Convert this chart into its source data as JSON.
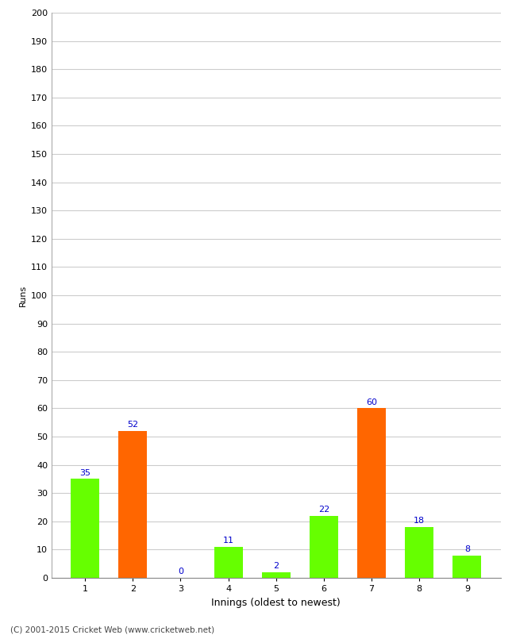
{
  "title": "",
  "xlabel": "Innings (oldest to newest)",
  "ylabel": "Runs",
  "categories": [
    "1",
    "2",
    "3",
    "4",
    "5",
    "6",
    "7",
    "8",
    "9"
  ],
  "values": [
    35,
    52,
    0,
    11,
    2,
    22,
    60,
    18,
    8
  ],
  "bar_colors": [
    "#66ff00",
    "#ff6600",
    "#66ff00",
    "#66ff00",
    "#66ff00",
    "#66ff00",
    "#ff6600",
    "#66ff00",
    "#66ff00"
  ],
  "ylim": [
    0,
    200
  ],
  "yticks": [
    0,
    10,
    20,
    30,
    40,
    50,
    60,
    70,
    80,
    90,
    100,
    110,
    120,
    130,
    140,
    150,
    160,
    170,
    180,
    190,
    200
  ],
  "label_color": "#0000cc",
  "label_fontsize": 8,
  "axis_fontsize": 8,
  "xlabel_fontsize": 9,
  "ylabel_fontsize": 8,
  "footer_text": "(C) 2001-2015 Cricket Web (www.cricketweb.net)",
  "background_color": "#ffffff",
  "grid_color": "#cccccc",
  "bar_width": 0.6
}
